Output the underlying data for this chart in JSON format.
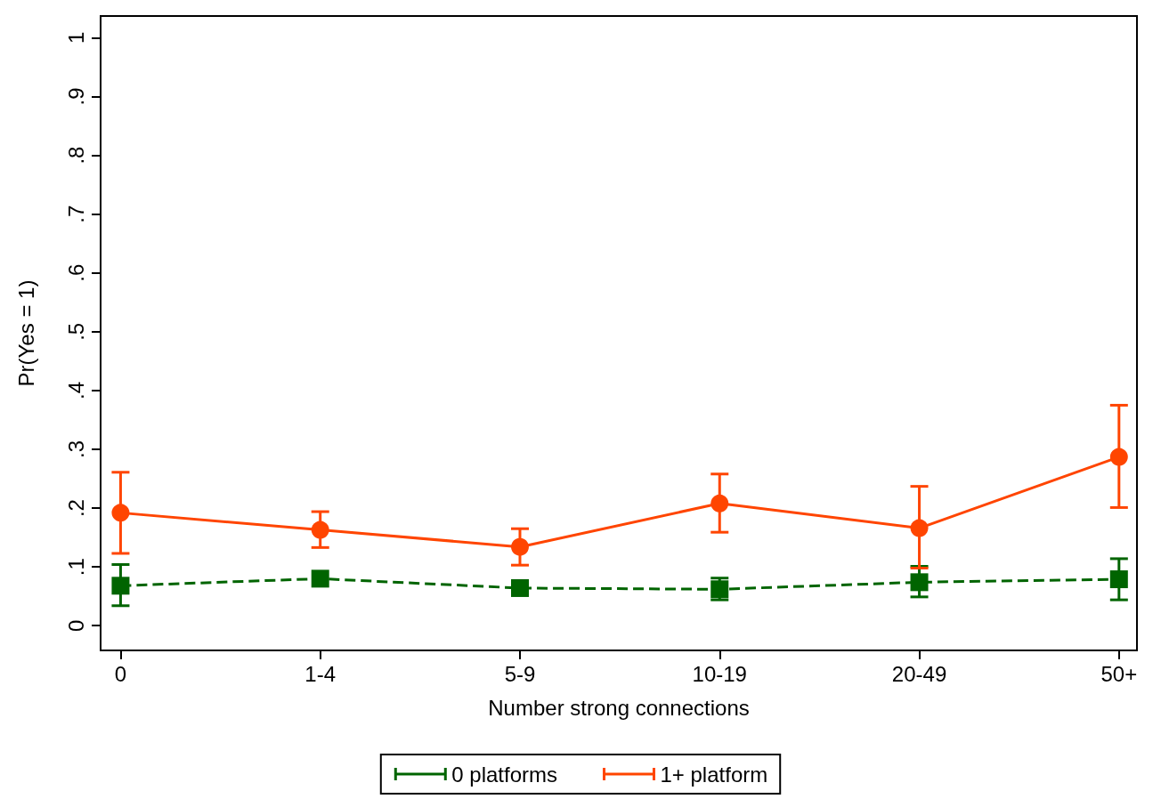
{
  "chart_data": {
    "type": "line",
    "xlabel": "Number strong connections",
    "ylabel": "Pr(Yes = 1)",
    "categories": [
      "0",
      "1-4",
      "5-9",
      "10-19",
      "20-49",
      "50+"
    ],
    "ylim": [
      -0.042,
      1.037
    ],
    "yticks": [
      0,
      {
        "value": 0.1,
        "label": ".1"
      },
      {
        "value": 0.2,
        "label": ".2"
      },
      {
        "value": 0.3,
        "label": ".3"
      },
      {
        "value": 0.4,
        "label": ".4"
      },
      {
        "value": 0.5,
        "label": ".5"
      },
      {
        "value": 0.6,
        "label": ".6"
      },
      {
        "value": 0.7,
        "label": ".7"
      },
      {
        "value": 0.8,
        "label": ".8"
      },
      {
        "value": 0.9,
        "label": ".9"
      },
      1
    ],
    "grid": false,
    "legend": "bottom",
    "series": [
      {
        "name": "0 platforms",
        "color": "#006400",
        "marker": "square",
        "line_style": "dashed",
        "values": [
          0.068,
          0.08,
          0.064,
          0.062,
          0.074,
          0.079
        ],
        "errors": [
          [
            0.034,
            0.104
          ],
          null,
          null,
          [
            0.044,
            0.081
          ],
          [
            0.049,
            0.101
          ],
          [
            0.044,
            0.114
          ]
        ]
      },
      {
        "name": "1+ platform",
        "color": "#ff4500",
        "marker": "circle",
        "line_style": "solid",
        "values": [
          0.192,
          0.163,
          0.134,
          0.208,
          0.166,
          0.287
        ],
        "errors": [
          [
            0.123,
            0.261
          ],
          [
            0.133,
            0.194
          ],
          [
            0.103,
            0.165
          ],
          [
            0.159,
            0.258
          ],
          [
            0.098,
            0.237
          ],
          [
            0.201,
            0.375
          ]
        ]
      }
    ]
  }
}
